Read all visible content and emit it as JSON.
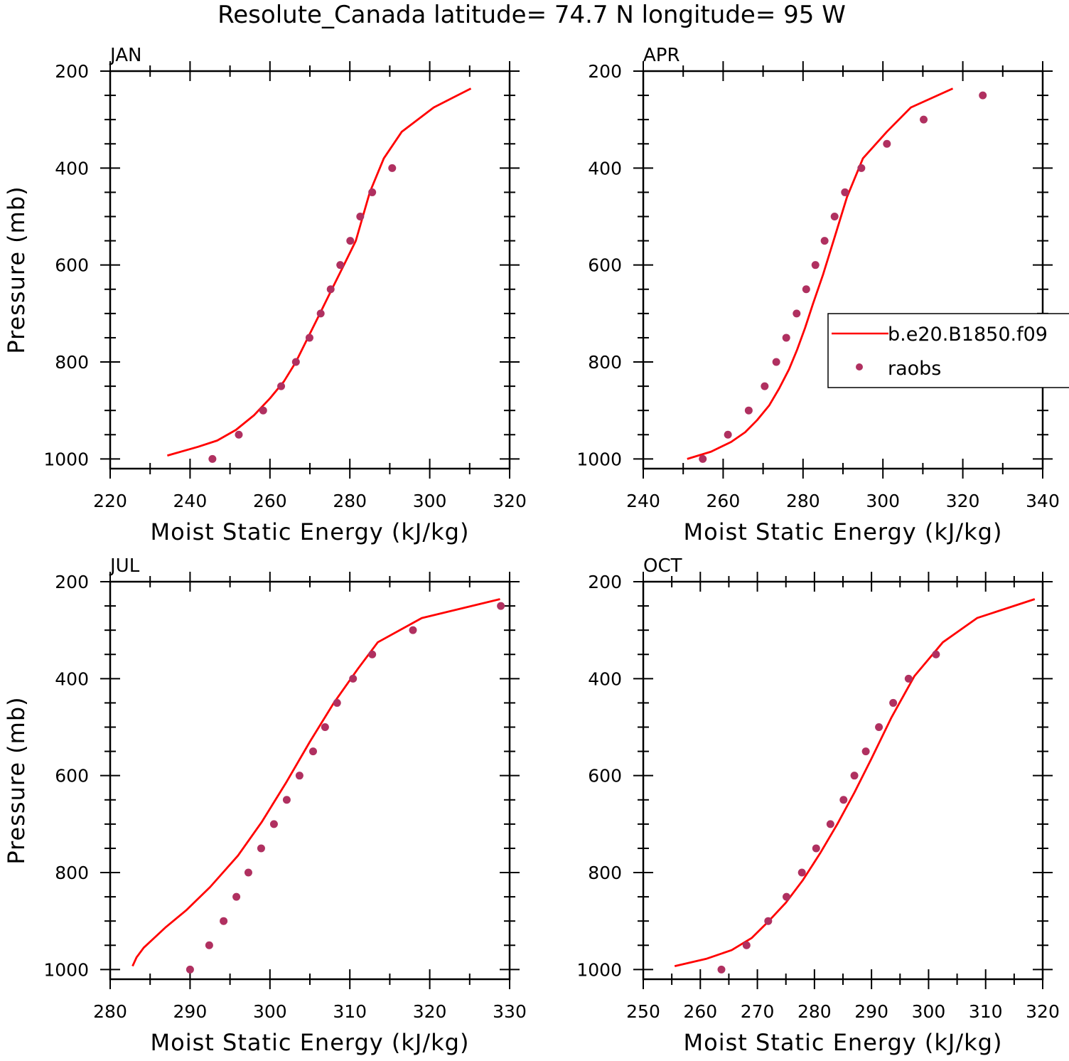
{
  "title": "Resolute_Canada  latitude= 74.7 N longitude= 95 W",
  "colors": {
    "model": "#ff0000",
    "obs": "#b03060",
    "axis": "#000000"
  },
  "legend": {
    "model_label": "b.e20.B1850.f09",
    "obs_label": "raobs",
    "position": "right of APR panel"
  },
  "chart_data": [
    {
      "type": "line",
      "panel": "JAN",
      "xlabel": "Moist Static Energy (kJ/kg)",
      "ylabel": "Pressure (mb)",
      "xlim": [
        220,
        320
      ],
      "ylim": [
        1000,
        200
      ],
      "xticks": [
        220,
        240,
        260,
        280,
        300,
        320
      ],
      "yticks": [
        200,
        400,
        600,
        800,
        1000
      ],
      "series": [
        {
          "name": "b.e20.B1850.f09",
          "kind": "line",
          "x": [
            234.3,
            242.0,
            246.8,
            251.5,
            256.0,
            260.0,
            263.5,
            266.5,
            269.5,
            272.5,
            275.5,
            278.5,
            281.5,
            285.0,
            288.5,
            293.0,
            301.0,
            310.3
          ],
          "y": [
            993,
            975,
            962,
            940,
            910,
            875,
            840,
            800,
            750,
            700,
            650,
            600,
            550,
            450,
            380,
            325,
            275,
            236
          ]
        },
        {
          "name": "raobs",
          "kind": "scatter",
          "x": [
            245.6,
            252.2,
            258.3,
            262.8,
            266.5,
            269.9,
            272.7,
            275.2,
            277.6,
            280.1,
            282.6,
            285.6,
            290.6
          ],
          "y": [
            1000,
            950,
            900,
            850,
            800,
            750,
            700,
            650,
            600,
            550,
            500,
            450,
            400
          ]
        }
      ]
    },
    {
      "type": "line",
      "panel": "APR",
      "xlabel": "Moist Static Energy (kJ/kg)",
      "ylabel": "",
      "xlim": [
        240,
        340
      ],
      "ylim": [
        1000,
        200
      ],
      "xticks": [
        240,
        260,
        280,
        300,
        320,
        340
      ],
      "yticks": [
        200,
        400,
        600,
        800,
        1000
      ],
      "series": [
        {
          "name": "b.e20.B1850.f09",
          "kind": "line",
          "x": [
            251.0,
            257.0,
            262.0,
            265.5,
            268.5,
            271.5,
            274.0,
            276.5,
            278.5,
            280.5,
            282.5,
            285.0,
            288.0,
            291.0,
            295.0,
            301.0,
            307.0,
            317.5
          ],
          "y": [
            1000,
            985,
            965,
            945,
            920,
            890,
            855,
            815,
            775,
            730,
            680,
            620,
            540,
            460,
            380,
            325,
            275,
            236
          ]
        },
        {
          "name": "raobs",
          "kind": "scatter",
          "x": [
            254.9,
            261.2,
            266.4,
            270.4,
            273.3,
            275.8,
            278.4,
            280.8,
            283.1,
            285.4,
            287.9,
            290.5,
            294.6,
            301.0,
            310.2,
            325.0
          ],
          "y": [
            1000,
            950,
            900,
            850,
            800,
            750,
            700,
            650,
            600,
            550,
            500,
            450,
            400,
            350,
            300,
            250
          ]
        }
      ]
    },
    {
      "type": "line",
      "panel": "JUL",
      "xlabel": "Moist Static Energy (kJ/kg)",
      "ylabel": "Pressure (mb)",
      "xlim": [
        280,
        330
      ],
      "ylim": [
        1000,
        200
      ],
      "xticks": [
        280,
        290,
        300,
        310,
        320,
        330
      ],
      "yticks": [
        200,
        400,
        600,
        800,
        1000
      ],
      "series": [
        {
          "name": "b.e20.B1850.f09",
          "kind": "line",
          "x": [
            282.8,
            283.3,
            284.2,
            285.5,
            287.0,
            289.5,
            292.5,
            296.0,
            299.0,
            302.0,
            305.0,
            308.0,
            311.0,
            313.5,
            319.0,
            328.8
          ],
          "y": [
            993,
            975,
            955,
            935,
            912,
            878,
            830,
            765,
            695,
            615,
            530,
            450,
            380,
            325,
            275,
            236
          ]
        },
        {
          "name": "raobs",
          "kind": "scatter",
          "x": [
            290.0,
            292.4,
            294.2,
            295.8,
            297.3,
            298.9,
            300.5,
            302.1,
            303.7,
            305.4,
            306.9,
            308.4,
            310.4,
            312.8,
            317.9,
            328.9
          ],
          "y": [
            1000,
            950,
            900,
            850,
            800,
            750,
            700,
            650,
            600,
            550,
            500,
            450,
            400,
            350,
            300,
            250
          ]
        }
      ]
    },
    {
      "type": "line",
      "panel": "OCT",
      "xlabel": "Moist Static Energy (kJ/kg)",
      "ylabel": "",
      "xlim": [
        250,
        320
      ],
      "ylim": [
        1000,
        200
      ],
      "xticks": [
        250,
        260,
        270,
        280,
        290,
        300,
        310,
        320
      ],
      "yticks": [
        200,
        400,
        600,
        800,
        1000
      ],
      "series": [
        {
          "name": "b.e20.B1850.f09",
          "kind": "line",
          "x": [
            255.5,
            261.0,
            265.5,
            269.0,
            272.0,
            275.0,
            278.0,
            281.0,
            284.0,
            287.0,
            290.0,
            293.5,
            297.5,
            302.5,
            308.5,
            318.6
          ],
          "y": [
            993,
            978,
            960,
            935,
            900,
            862,
            815,
            760,
            700,
            635,
            565,
            480,
            395,
            325,
            275,
            236
          ]
        },
        {
          "name": "raobs",
          "kind": "scatter",
          "x": [
            263.7,
            268.1,
            271.9,
            275.1,
            277.8,
            280.3,
            282.8,
            285.1,
            287.0,
            289.0,
            291.3,
            293.8,
            296.5,
            301.3
          ],
          "y": [
            1000,
            950,
            900,
            850,
            800,
            750,
            700,
            650,
            600,
            550,
            500,
            450,
            400,
            350
          ]
        }
      ]
    }
  ]
}
